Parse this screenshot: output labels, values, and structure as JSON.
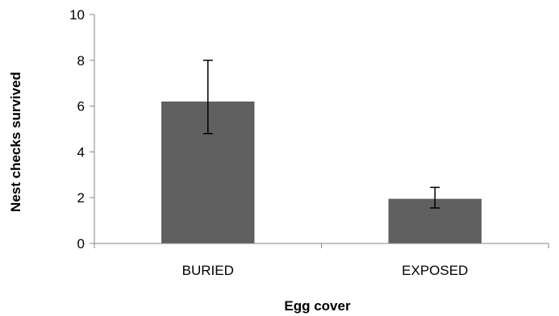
{
  "chart_data": {
    "type": "bar",
    "title": "",
    "xlabel": "Egg cover",
    "ylabel": "Nest checks survived",
    "categories": [
      "BURIED",
      "EXPOSED"
    ],
    "values": [
      6.2,
      1.95
    ],
    "error_low": [
      4.8,
      1.55
    ],
    "error_high": [
      8.0,
      2.45
    ],
    "ylim": [
      0,
      10
    ],
    "yticks": [
      "0",
      "2",
      "4",
      "6",
      "8",
      "10"
    ],
    "grid": false,
    "legend": "none",
    "bar_color": "#606060",
    "error_bar_color": "#000000",
    "axis_color": "#868686"
  }
}
